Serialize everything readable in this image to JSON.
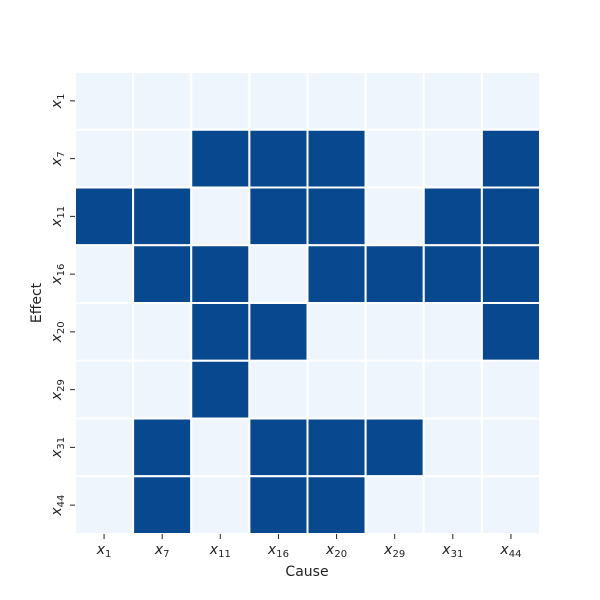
{
  "chart_data": {
    "type": "heatmap",
    "x_label": "Cause",
    "y_label": "Effect",
    "x_categories": [
      [
        "x",
        "1"
      ],
      [
        "x",
        "7"
      ],
      [
        "x",
        "11"
      ],
      [
        "x",
        "16"
      ],
      [
        "x",
        "20"
      ],
      [
        "x",
        "29"
      ],
      [
        "x",
        "31"
      ],
      [
        "x",
        "44"
      ]
    ],
    "y_categories": [
      [
        "x",
        "1"
      ],
      [
        "x",
        "7"
      ],
      [
        "x",
        "11"
      ],
      [
        "x",
        "16"
      ],
      [
        "x",
        "20"
      ],
      [
        "x",
        "29"
      ],
      [
        "x",
        "31"
      ],
      [
        "x",
        "44"
      ]
    ],
    "values": [
      [
        0,
        0,
        0,
        0,
        0,
        0,
        0,
        0
      ],
      [
        0,
        0,
        1,
        1,
        1,
        0,
        0,
        1
      ],
      [
        1,
        1,
        0,
        1,
        1,
        0,
        1,
        1
      ],
      [
        0,
        1,
        1,
        0,
        1,
        1,
        1,
        1
      ],
      [
        0,
        0,
        1,
        1,
        0,
        0,
        0,
        1
      ],
      [
        0,
        0,
        1,
        0,
        0,
        0,
        0,
        0
      ],
      [
        0,
        1,
        0,
        1,
        1,
        1,
        0,
        0
      ],
      [
        0,
        1,
        0,
        1,
        1,
        0,
        0,
        0
      ]
    ],
    "colors": [
      "#eef5fc",
      "#08488e"
    ]
  }
}
